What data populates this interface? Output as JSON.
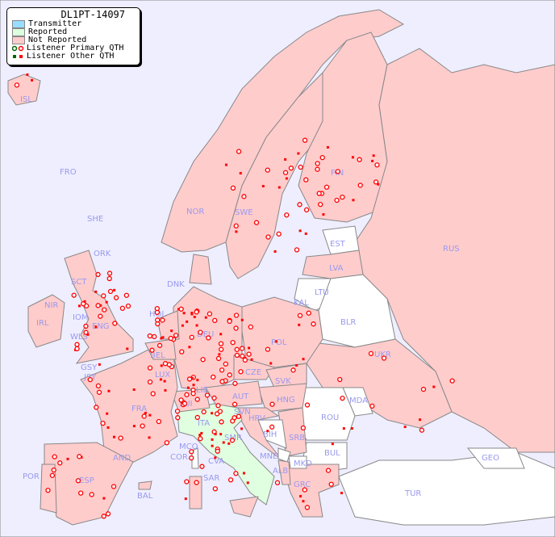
{
  "legend": {
    "title": "DL1PT-14097",
    "items": [
      {
        "label": "Transmitter",
        "color": "#99ddff"
      },
      {
        "label": "Reported",
        "color": "#ddffdd"
      },
      {
        "label": "Not Reported",
        "color": "#ffcccc"
      },
      {
        "label": "Listener Primary QTH",
        "marker": "circle",
        "colors": [
          "#006600",
          "#ff0000"
        ]
      },
      {
        "label": "Listener Other QTH",
        "marker": "square",
        "colors": [
          "#006600",
          "#ff0000"
        ]
      }
    ]
  },
  "colors": {
    "sea": "#eeeeff",
    "not_reported": "#ffcccc",
    "reported": "#e0ffe0",
    "no_data": "#ffffff",
    "listener": "#ff0000",
    "label": "#9999ee"
  },
  "countries": [
    {
      "code": "ISL"
    },
    {
      "code": "FRO"
    },
    {
      "code": "SHE"
    },
    {
      "code": "ORK"
    },
    {
      "code": "SCT"
    },
    {
      "code": "NIR"
    },
    {
      "code": "IRL"
    },
    {
      "code": "IOM"
    },
    {
      "code": "WLS"
    },
    {
      "code": "ENG"
    },
    {
      "code": "GSY"
    },
    {
      "code": "JSY"
    },
    {
      "code": "HOL"
    },
    {
      "code": "BEL"
    },
    {
      "code": "LUX"
    },
    {
      "code": "DNK"
    },
    {
      "code": "NOR"
    },
    {
      "code": "SWE"
    },
    {
      "code": "FIN"
    },
    {
      "code": "EST"
    },
    {
      "code": "LVA"
    },
    {
      "code": "LTU"
    },
    {
      "code": "KAL"
    },
    {
      "code": "BLR"
    },
    {
      "code": "RUS"
    },
    {
      "code": "POL"
    },
    {
      "code": "DEU"
    },
    {
      "code": "CZE"
    },
    {
      "code": "SVK"
    },
    {
      "code": "UKR"
    },
    {
      "code": "MDA"
    },
    {
      "code": "HNG"
    },
    {
      "code": "AUT"
    },
    {
      "code": "SUI"
    },
    {
      "code": "LIE"
    },
    {
      "code": "FRA"
    },
    {
      "code": "ITA"
    },
    {
      "code": "SVN"
    },
    {
      "code": "HRV"
    },
    {
      "code": "BIH"
    },
    {
      "code": "SRB"
    },
    {
      "code": "ROU"
    },
    {
      "code": "BUL"
    },
    {
      "code": "MNE"
    },
    {
      "code": "ALB"
    },
    {
      "code": "MKD"
    },
    {
      "code": "GRC"
    },
    {
      "code": "TUR"
    },
    {
      "code": "GEO"
    },
    {
      "code": "SMR"
    },
    {
      "code": "MCO"
    },
    {
      "code": "COR"
    },
    {
      "code": "CVA"
    },
    {
      "code": "SAR"
    },
    {
      "code": "AND"
    },
    {
      "code": "POR"
    },
    {
      "code": "ESP"
    },
    {
      "code": "BAL"
    }
  ]
}
